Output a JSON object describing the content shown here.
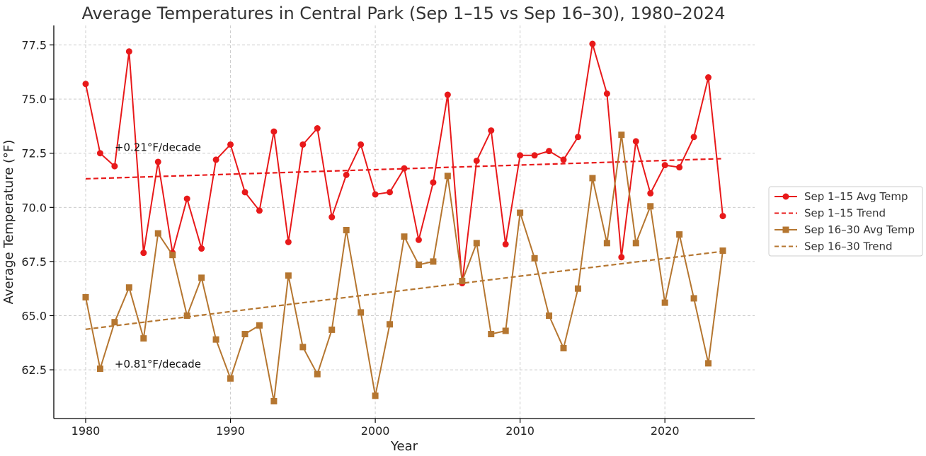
{
  "chart_data": {
    "type": "line",
    "title": "Average Temperatures in Central Park (Sep 1–15 vs Sep 16–30), 1980–2024",
    "xlabel": "Year",
    "ylabel": "Average Temperature (°F)",
    "xlim": [
      1977.8,
      2026.2
    ],
    "ylim": [
      60.25,
      78.4
    ],
    "x_ticks": [
      1980,
      1990,
      2000,
      2010,
      2020
    ],
    "y_ticks": [
      62.5,
      65.0,
      67.5,
      70.0,
      72.5,
      75.0,
      77.5
    ],
    "y_tick_labels": [
      "62.5",
      "65.0",
      "67.5",
      "70.0",
      "72.5",
      "75.0",
      "77.5"
    ],
    "grid": true,
    "legend_position": "right",
    "x": [
      1980,
      1981,
      1982,
      1983,
      1984,
      1985,
      1986,
      1987,
      1988,
      1989,
      1990,
      1991,
      1992,
      1993,
      1994,
      1995,
      1996,
      1997,
      1998,
      1999,
      2000,
      2001,
      2002,
      2003,
      2004,
      2005,
      2006,
      2007,
      2008,
      2009,
      2010,
      2011,
      2012,
      2013,
      2014,
      2015,
      2016,
      2017,
      2018,
      2019,
      2020,
      2021,
      2022,
      2023,
      2024
    ],
    "series": [
      {
        "name": "Sep 1–15 Avg Temp",
        "color": "#e8191a",
        "marker": "circle",
        "values": [
          75.7,
          72.5,
          71.9,
          77.2,
          67.9,
          72.1,
          67.9,
          70.4,
          68.1,
          72.2,
          72.9,
          70.7,
          69.85,
          73.5,
          68.4,
          72.9,
          73.65,
          69.55,
          71.5,
          72.9,
          70.6,
          70.7,
          71.8,
          68.5,
          71.15,
          75.2,
          66.5,
          72.15,
          73.55,
          68.3,
          72.4,
          72.4,
          72.6,
          72.2,
          73.25,
          77.55,
          75.25,
          67.7,
          73.05,
          70.65,
          71.95,
          71.85,
          73.25,
          76.0,
          69.6
        ]
      },
      {
        "name": "Sep 16–30 Avg Temp",
        "color": "#b57630",
        "marker": "square",
        "values": [
          65.85,
          62.55,
          64.7,
          66.3,
          63.95,
          68.8,
          67.8,
          65.0,
          66.75,
          63.9,
          62.1,
          64.15,
          64.55,
          61.05,
          66.85,
          63.55,
          62.3,
          64.35,
          68.95,
          65.15,
          61.3,
          64.6,
          68.65,
          67.35,
          67.5,
          71.45,
          66.6,
          68.35,
          64.15,
          64.3,
          69.75,
          67.65,
          65.0,
          63.5,
          66.25,
          71.35,
          68.35,
          73.35,
          68.35,
          70.05,
          65.6,
          68.75,
          65.8,
          62.8,
          68.0
        ]
      }
    ],
    "trends": [
      {
        "name": "Sep 1–15 Trend",
        "color": "#e8191a",
        "x": [
          1980,
          2024
        ],
        "y": [
          71.32,
          72.25
        ],
        "annotation": "+0.21°F/decade",
        "annotation_x": 1982,
        "annotation_y": 72.6
      },
      {
        "name": "Sep 16–30 Trend",
        "color": "#b57630",
        "x": [
          1980,
          2024
        ],
        "y": [
          64.37,
          67.97
        ],
        "annotation": "+0.81°F/decade",
        "annotation_x": 1982,
        "annotation_y": 62.6
      }
    ],
    "legend": [
      {
        "label": "Sep 1–15 Avg Temp",
        "color": "#e8191a",
        "style": "solid",
        "marker": "circle"
      },
      {
        "label": "Sep 1–15 Trend",
        "color": "#e8191a",
        "style": "dashed",
        "marker": "none"
      },
      {
        "label": "Sep 16–30 Avg Temp",
        "color": "#b57630",
        "style": "solid",
        "marker": "square"
      },
      {
        "label": "Sep 16–30 Trend",
        "color": "#b57630",
        "style": "dashed",
        "marker": "none"
      }
    ]
  }
}
